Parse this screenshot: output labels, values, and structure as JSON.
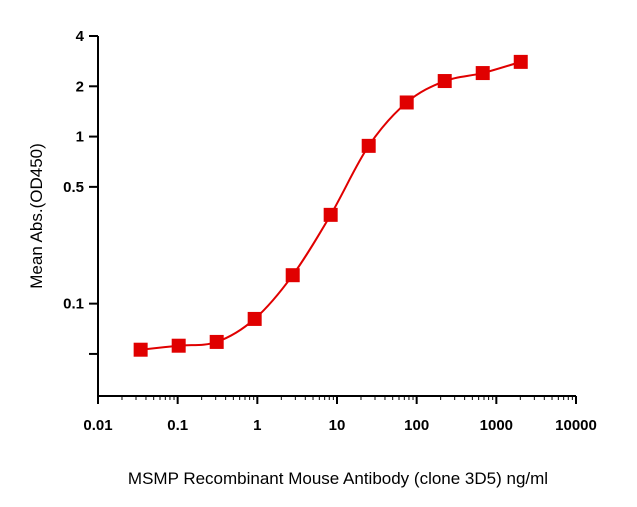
{
  "chart_data": {
    "type": "line",
    "title": "",
    "xlabel": "MSMP Recombinant Mouse Antibody (clone 3D5) ng/ml",
    "ylabel": "Mean Abs.(OD450)",
    "x_scale": "log",
    "y_scale": "log",
    "xlim": [
      0.01,
      10000
    ],
    "ylim": [
      0.028,
      4
    ],
    "x_ticks": [
      0.01,
      0.1,
      1,
      10,
      100,
      1000,
      10000
    ],
    "x_tick_labels": [
      "0.01",
      "0.1",
      "1",
      "10",
      "100",
      "1000",
      "10000"
    ],
    "y_ticks": [
      0.05,
      0.1,
      0.5,
      1,
      2,
      4
    ],
    "y_tick_labels": [
      "",
      "0.1",
      "0.5",
      "1",
      "2",
      "4"
    ],
    "grid": false,
    "legend": "none",
    "marker": "square",
    "color": "#e00000",
    "series": [
      {
        "x": [
          0.0343,
          0.103,
          0.309,
          0.926,
          2.78,
          8.33,
          25,
          75,
          225,
          675,
          2025
        ],
        "y": [
          0.053,
          0.056,
          0.059,
          0.081,
          0.148,
          0.34,
          0.88,
          1.6,
          2.15,
          2.4,
          2.8
        ]
      }
    ]
  }
}
